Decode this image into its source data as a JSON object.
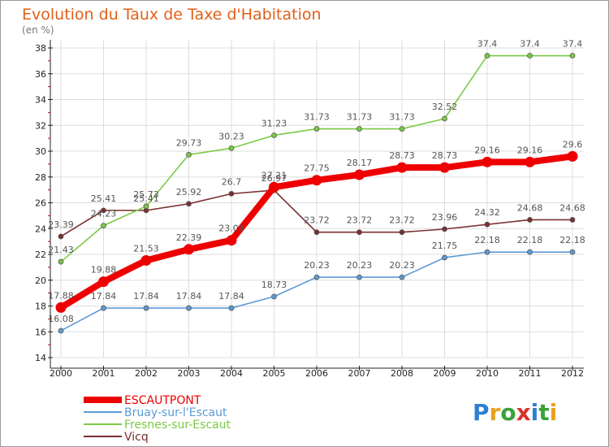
{
  "title": "Evolution du Taux de Taxe d'Habitation",
  "subtitle": "(en %)",
  "logo_text": "Proxiti",
  "colors": {
    "title": "#e15f17",
    "axis": "#222222",
    "grid": "#dddddd",
    "frame": "#999999"
  },
  "chart_data": {
    "type": "line",
    "title": "Evolution du Taux de Taxe d'Habitation",
    "subtitle": "(en %)",
    "xlabel": "",
    "ylabel": "(en %)",
    "x": [
      "2000",
      "2001",
      "2002",
      "2003",
      "2004",
      "2005",
      "2006",
      "2007",
      "2008",
      "2009",
      "2010",
      "2011",
      "2012"
    ],
    "ylim": [
      14,
      38
    ],
    "yticks": [
      "14",
      "16",
      "18",
      "20",
      "22",
      "24",
      "26",
      "28",
      "30",
      "32",
      "34",
      "36",
      "38"
    ],
    "grid": true,
    "legend_position": "bottom-left",
    "series": [
      {
        "name": "ESCAUTPONT",
        "color": "#ee0000",
        "values": [
          17.88,
          19.88,
          21.53,
          22.39,
          23.09,
          27.21,
          27.75,
          28.17,
          28.73,
          28.73,
          29.16,
          29.16,
          29.6
        ],
        "labels": [
          "17.88",
          "19.88",
          "21.53",
          "22.39",
          "23.09",
          "27.21",
          "27.75",
          "28.17",
          "28.73",
          "28.73",
          "29.16",
          "29.16",
          "29.6"
        ]
      },
      {
        "name": "Bruay-sur-l'Escaut",
        "color": "#5b9bd5",
        "values": [
          16.08,
          17.84,
          17.84,
          17.84,
          17.84,
          18.73,
          20.23,
          20.23,
          20.23,
          21.75,
          22.18,
          22.18,
          22.18
        ],
        "labels": [
          "16.08",
          "17.84",
          "17.84",
          "17.84",
          "17.84",
          "18.73",
          "20.23",
          "20.23",
          "20.23",
          "21.75",
          "22.18",
          "22.18",
          "22.18"
        ]
      },
      {
        "name": "Fresnes-sur-Escaut",
        "color": "#7ac943",
        "values": [
          21.43,
          24.23,
          25.73,
          29.73,
          30.23,
          31.23,
          31.73,
          31.73,
          31.73,
          32.52,
          37.4,
          37.4,
          37.4
        ],
        "labels": [
          "21.43",
          "24.23",
          "25.73",
          "29.73",
          "30.23",
          "31.23",
          "31.73",
          "31.73",
          "31.73",
          "32.52",
          "37.4",
          "37.4",
          "37.4"
        ]
      },
      {
        "name": "Vicq",
        "color": "#7b2f2f",
        "values": [
          23.39,
          25.41,
          25.41,
          25.92,
          26.7,
          26.97,
          23.72,
          23.72,
          23.72,
          23.96,
          24.32,
          24.68,
          24.68
        ],
        "labels": [
          "23.39",
          "25.41",
          "25.41",
          "25.92",
          "26.7",
          "26.97",
          "23.72",
          "23.72",
          "23.72",
          "23.96",
          "24.32",
          "24.68",
          "24.68"
        ]
      }
    ]
  }
}
